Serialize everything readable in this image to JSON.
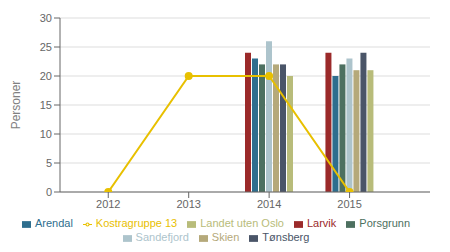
{
  "chart_data": {
    "type": "bar",
    "x": [
      2012,
      2013,
      2014,
      2015
    ],
    "series": [
      {
        "name": "Larvik",
        "color": "#9b2a2a",
        "values": [
          null,
          null,
          24,
          24
        ]
      },
      {
        "name": "Arendal",
        "color": "#2e6e8e",
        "values": [
          null,
          null,
          23,
          20
        ]
      },
      {
        "name": "Porsgrunn",
        "color": "#4d7060",
        "values": [
          null,
          null,
          22,
          22
        ]
      },
      {
        "name": "Sandefjord",
        "color": "#adc4cc",
        "values": [
          null,
          null,
          26,
          23
        ]
      },
      {
        "name": "Skien",
        "color": "#b5a97a",
        "values": [
          null,
          null,
          22,
          21
        ]
      },
      {
        "name": "Tønsberg",
        "color": "#4a5568",
        "values": [
          null,
          null,
          22,
          24
        ]
      },
      {
        "name": "Landet uten Oslo",
        "color": "#b8bc7a",
        "values": [
          null,
          null,
          20,
          21
        ]
      },
      {
        "name": "Kostragruppe 13",
        "type": "line",
        "color": "#e8c000",
        "marker": "circle",
        "values": [
          0,
          20,
          20,
          0
        ]
      }
    ],
    "ylabel": "Personer",
    "xlim": [
      2011.4,
      2016
    ],
    "xticks": [
      2012,
      2013,
      2014,
      2015
    ],
    "ylim": [
      0,
      30
    ],
    "yticks": [
      0,
      5,
      10,
      15,
      20,
      25,
      30
    ],
    "grid": true,
    "legend": "bottom"
  }
}
